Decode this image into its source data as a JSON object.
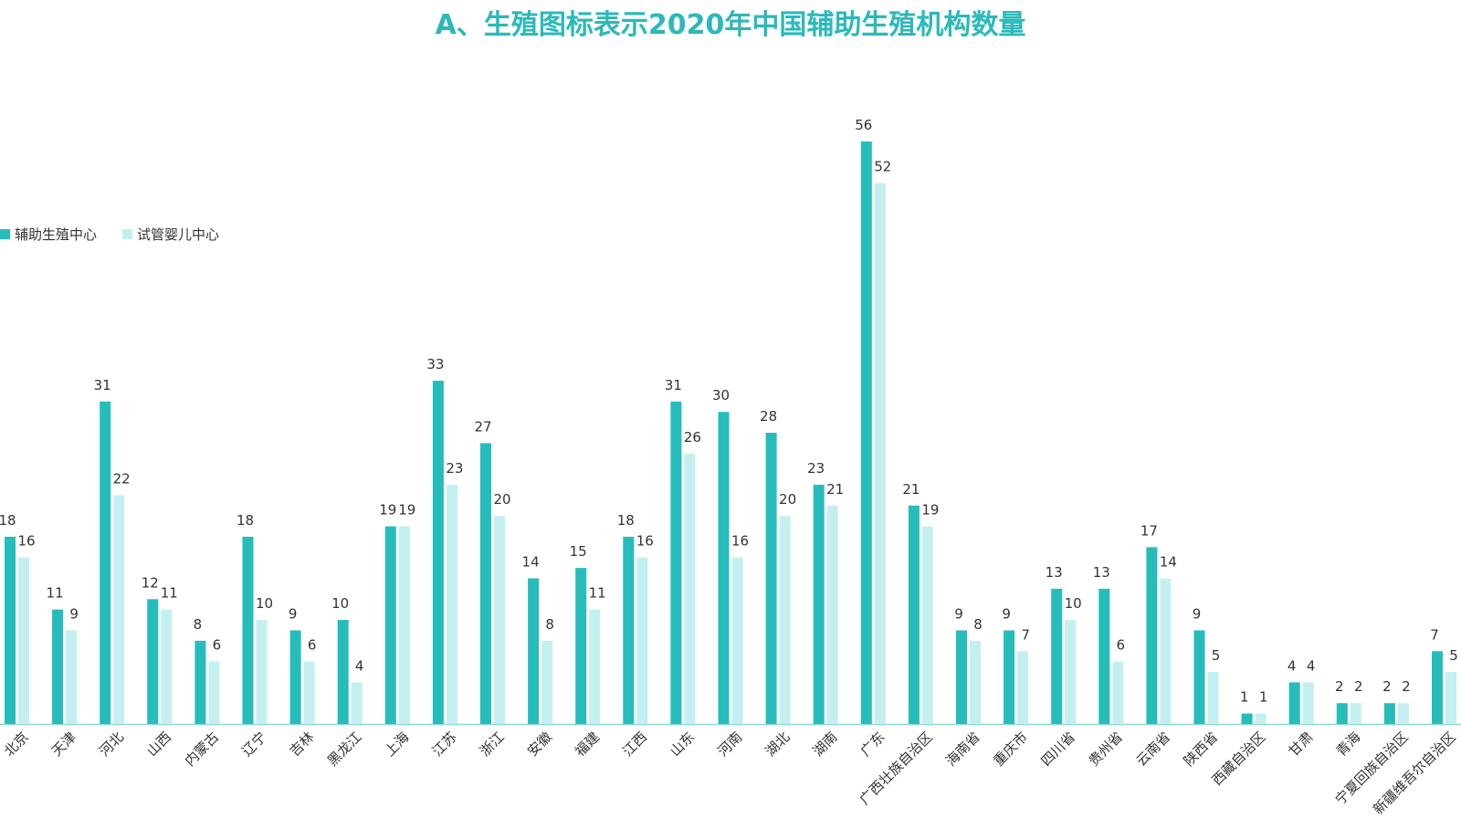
{
  "chart_data": {
    "type": "bar",
    "title": "A、生殖图标表示2020年中国辅助生殖机构数量",
    "xlabel": "",
    "ylabel": "",
    "ylim": [
      0,
      56
    ],
    "grid": false,
    "legend_position": "left",
    "categories": [
      "北京",
      "天津",
      "河北",
      "山西",
      "内蒙古",
      "辽宁",
      "吉林",
      "黑龙江",
      "上海",
      "江苏",
      "浙江",
      "安徽",
      "福建",
      "江西",
      "山东",
      "河南",
      "湖北",
      "湖南",
      "广东",
      "广西壮族自治区",
      "海南省",
      "重庆市",
      "四川省",
      "贵州省",
      "云南省",
      "陕西省",
      "西藏自治区",
      "甘肃",
      "青海",
      "宁夏回族自治区",
      "新疆维吾尔自治区"
    ],
    "series": [
      {
        "name": "辅助生殖中心",
        "color": "#26bcbc",
        "values": [
          18,
          11,
          31,
          12,
          8,
          18,
          9,
          10,
          19,
          33,
          27,
          14,
          15,
          18,
          31,
          30,
          28,
          23,
          56,
          21,
          9,
          9,
          13,
          13,
          17,
          9,
          1,
          4,
          2,
          2,
          7
        ]
      },
      {
        "name": "试管婴儿中心",
        "color": "#c4eff0",
        "values": [
          16,
          9,
          22,
          11,
          6,
          10,
          6,
          4,
          19,
          23,
          20,
          8,
          11,
          16,
          26,
          16,
          20,
          21,
          52,
          19,
          8,
          7,
          10,
          6,
          14,
          5,
          1,
          4,
          2,
          2,
          5
        ]
      }
    ]
  },
  "legend": {
    "item1": "辅助生殖中心",
    "item2": "试管婴儿中心"
  },
  "colors": {
    "title": "#2bb9b9",
    "series1": "#26bcbc",
    "series2": "#c4eff0",
    "axis": "#8fd6d6"
  }
}
